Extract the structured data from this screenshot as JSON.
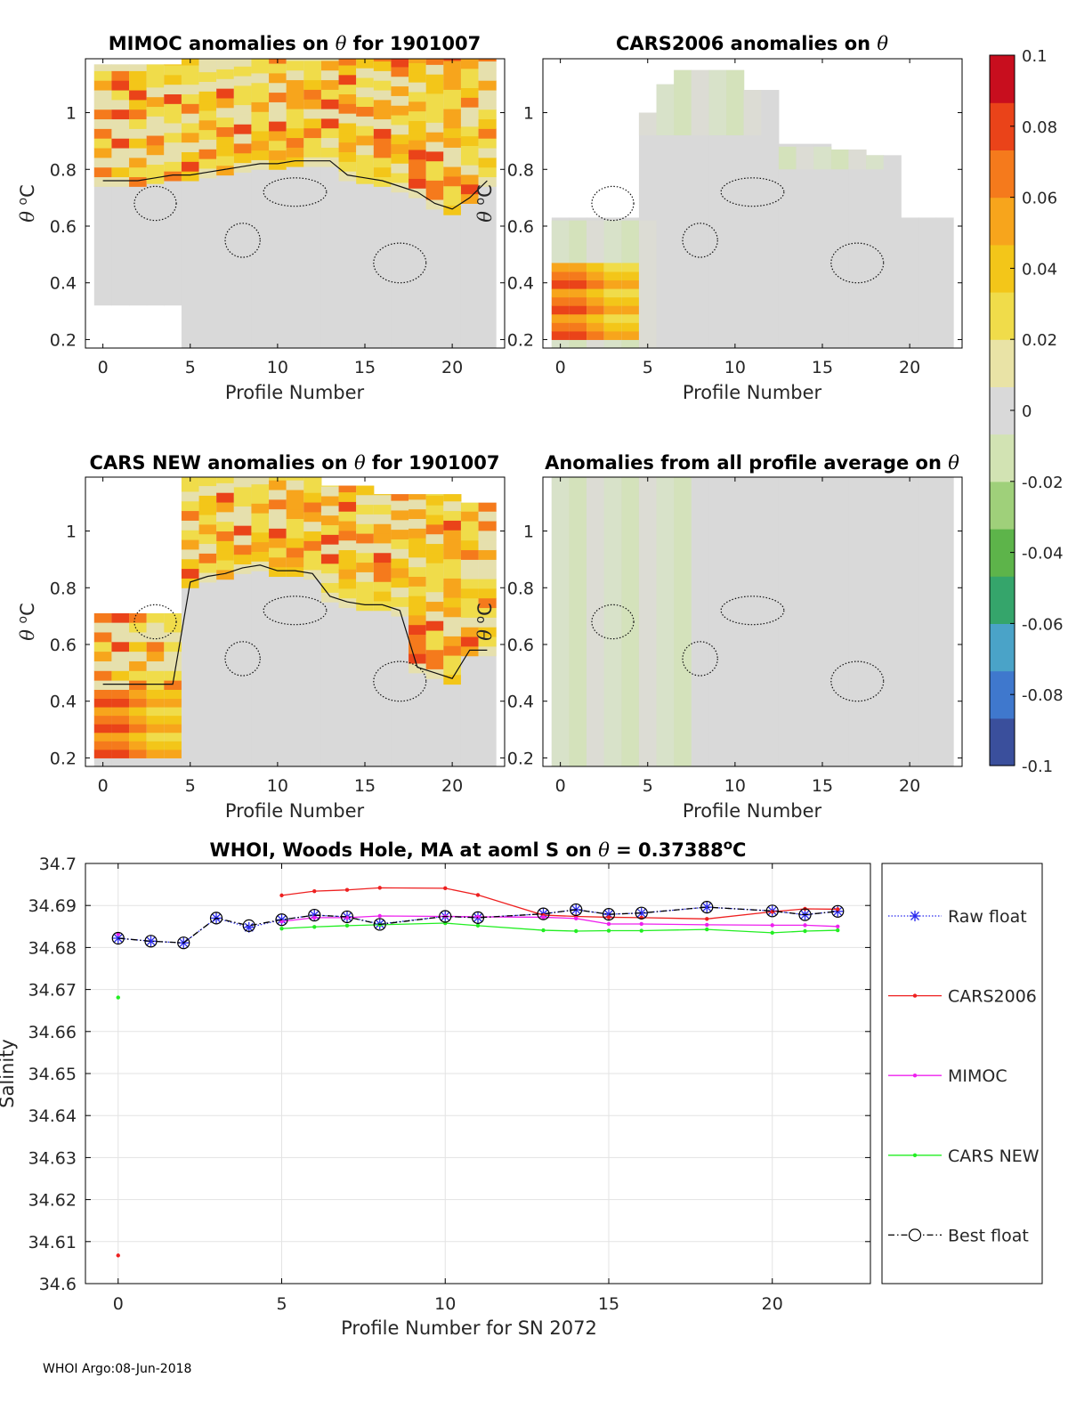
{
  "figure": {
    "footer": "WHOI Argo:08-Jun-2018"
  },
  "colorbar": {
    "min": -0.1,
    "max": 0.1,
    "tick_labels": [
      "0.1",
      "0.08",
      "0.06",
      "0.04",
      "0.02",
      "0",
      "-0.02",
      "-0.04",
      "-0.06",
      "-0.08",
      "-0.1"
    ],
    "colors": [
      "#3a4f9c",
      "#3f78cd",
      "#4aa3c8",
      "#35a56b",
      "#5db44a",
      "#9fd07a",
      "#d2e3b3",
      "#d9d9d9",
      "#e9e3a6",
      "#f0dc4a",
      "#f3c619",
      "#f7a51c",
      "#f57a1c",
      "#ea4319",
      "#c80e1e"
    ]
  },
  "heatmaps": [
    {
      "id": "mimoc",
      "title_prefix": "MIMOC anomalies on ",
      "theta": "θ",
      "title_suffix": "  for 1901007",
      "xlabel": "Profile Number",
      "ylabel_theta": "θ",
      "ylabel_unit": "C",
      "ylabel_sup": "o",
      "x_ticks": [
        "0",
        "5",
        "10",
        "15",
        "20"
      ],
      "y_ticks": [
        "0.2",
        "0.4",
        "0.6",
        "0.8",
        "1"
      ],
      "xlim": [
        -1,
        23
      ],
      "ylim": [
        0.17,
        1.19
      ],
      "grid_x": [
        0,
        1,
        2,
        3,
        4,
        5,
        6,
        7,
        8,
        9,
        10,
        11,
        12,
        13,
        14,
        15,
        16,
        17,
        18,
        19,
        20,
        21,
        22
      ],
      "theta_min": [
        0.32,
        0.32,
        0.32,
        0.32,
        0.32,
        0.17,
        0.17,
        0.17,
        0.17,
        0.17,
        0.17,
        0.17,
        0.17,
        0.17,
        0.17,
        0.17,
        0.17,
        0.17,
        0.17,
        0.17,
        0.17,
        0.17,
        0.17
      ],
      "theta_max": [
        1.17,
        1.17,
        1.17,
        1.17,
        1.17,
        1.19,
        1.19,
        1.19,
        1.19,
        1.19,
        1.19,
        1.19,
        1.19,
        1.19,
        1.19,
        1.19,
        1.19,
        1.19,
        1.19,
        1.19,
        1.19,
        1.19,
        1.19
      ],
      "warm_band": [
        0.74,
        0.74,
        0.74,
        0.75,
        0.76,
        0.76,
        0.77,
        0.78,
        0.79,
        0.8,
        0.8,
        0.81,
        0.81,
        0.81,
        0.76,
        0.75,
        0.74,
        0.72,
        0.7,
        0.66,
        0.64,
        0.68,
        0.74
      ],
      "cool_patches": []
    },
    {
      "id": "cars2006",
      "title_prefix": "CARS2006 anomalies on ",
      "theta": "θ",
      "title_suffix": "",
      "xlabel": "Profile Number",
      "ylabel_theta": "θ",
      "ylabel_unit": "C",
      "ylabel_sup": "o",
      "x_ticks": [
        "0",
        "5",
        "10",
        "15",
        "20"
      ],
      "y_ticks": [
        "0.2",
        "0.4",
        "0.6",
        "0.8",
        "1"
      ],
      "xlim": [
        -1,
        23
      ],
      "ylim": [
        0.17,
        1.19
      ],
      "grid_x": [
        0,
        1,
        2,
        3,
        4,
        5,
        6,
        7,
        8,
        9,
        10,
        11,
        12,
        13,
        14,
        15,
        16,
        17,
        18,
        19,
        20,
        21,
        22
      ],
      "theta_min": [
        0.17,
        0.17,
        0.17,
        0.17,
        0.17,
        0.17,
        0.17,
        0.17,
        0.17,
        0.17,
        0.17,
        0.17,
        0.17,
        0.17,
        0.17,
        0.17,
        0.17,
        0.17,
        0.17,
        0.17,
        0.17,
        0.17,
        0.17
      ],
      "theta_max": [
        0.63,
        0.63,
        0.63,
        0.63,
        0.63,
        1.0,
        1.1,
        1.15,
        1.15,
        1.15,
        1.15,
        1.08,
        1.08,
        0.89,
        0.89,
        0.89,
        0.87,
        0.87,
        0.85,
        0.85,
        0.63,
        0.63,
        0.63
      ],
      "warm_band": [],
      "cool_patches": [
        [
          5,
          11,
          0.92,
          1.15
        ],
        [
          13,
          18,
          0.8,
          0.88
        ],
        [
          0,
          5,
          0.17,
          0.62
        ]
      ],
      "warm_pocket": [
        0,
        4,
        0.2,
        0.47
      ]
    },
    {
      "id": "cars_new",
      "title_prefix": "CARS NEW anomalies on ",
      "theta": "θ",
      "title_suffix": " for 1901007",
      "xlabel": "Profile Number",
      "ylabel_theta": "θ",
      "ylabel_unit": "C",
      "ylabel_sup": "o",
      "x_ticks": [
        "0",
        "5",
        "10",
        "15",
        "20"
      ],
      "y_ticks": [
        "0.2",
        "0.4",
        "0.6",
        "0.8",
        "1"
      ],
      "xlim": [
        -1,
        23
      ],
      "ylim": [
        0.17,
        1.19
      ],
      "grid_x": [
        0,
        1,
        2,
        3,
        4,
        5,
        6,
        7,
        8,
        9,
        10,
        11,
        12,
        13,
        14,
        15,
        16,
        17,
        18,
        19,
        20,
        21,
        22
      ],
      "theta_min": [
        0.17,
        0.17,
        0.17,
        0.17,
        0.17,
        0.17,
        0.17,
        0.17,
        0.17,
        0.17,
        0.17,
        0.17,
        0.17,
        0.17,
        0.17,
        0.17,
        0.17,
        0.17,
        0.17,
        0.17,
        0.17,
        0.17,
        0.17
      ],
      "theta_max": [
        0.71,
        0.71,
        0.71,
        0.71,
        0.71,
        1.19,
        1.19,
        1.19,
        1.19,
        1.19,
        1.19,
        1.19,
        1.19,
        1.16,
        1.16,
        1.16,
        1.13,
        1.13,
        1.13,
        1.13,
        1.13,
        1.1,
        1.1
      ],
      "warm_band": [
        0.44,
        0.44,
        0.44,
        0.44,
        0.44,
        0.8,
        0.82,
        0.83,
        0.85,
        0.86,
        0.84,
        0.84,
        0.83,
        0.75,
        0.73,
        0.72,
        0.72,
        0.7,
        0.5,
        0.48,
        0.46,
        0.56,
        0.56
      ],
      "cool_patches": [],
      "warm_pocket": [
        0,
        4,
        0.2,
        0.43
      ]
    },
    {
      "id": "all_avg",
      "title_prefix": "Anomalies from all profile average on ",
      "theta": "θ",
      "title_suffix": "",
      "xlabel": "Profile Number",
      "ylabel_theta": "θ",
      "ylabel_unit": "C",
      "ylabel_sup": "o",
      "x_ticks": [
        "0",
        "5",
        "10",
        "15",
        "20"
      ],
      "y_ticks": [
        "0.2",
        "0.4",
        "0.6",
        "0.8",
        "1"
      ],
      "xlim": [
        -1,
        23
      ],
      "ylim": [
        0.17,
        1.19
      ],
      "grid_x": [
        0,
        1,
        2,
        3,
        4,
        5,
        6,
        7,
        8,
        9,
        10,
        11,
        12,
        13,
        14,
        15,
        16,
        17,
        18,
        19,
        20,
        21,
        22
      ],
      "theta_min": [
        0.17,
        0.17,
        0.17,
        0.17,
        0.17,
        0.17,
        0.17,
        0.17,
        0.17,
        0.17,
        0.17,
        0.17,
        0.17,
        0.17,
        0.17,
        0.17,
        0.17,
        0.17,
        0.17,
        0.17,
        0.17,
        0.17,
        0.17
      ],
      "theta_max": [
        1.19,
        1.19,
        1.19,
        1.19,
        1.19,
        1.19,
        1.19,
        1.19,
        1.19,
        1.19,
        1.19,
        1.19,
        1.19,
        1.19,
        1.19,
        1.19,
        1.19,
        1.19,
        1.19,
        1.19,
        1.19,
        1.19,
        1.19
      ],
      "warm_band": [],
      "cool_patches": [
        [
          0,
          7,
          0.17,
          1.19
        ]
      ]
    }
  ],
  "chart_data": {
    "type": "line",
    "title_prefix": "WHOI, Woods Hole, MA at aoml S on ",
    "title_theta": "θ",
    "title_value": " = 0.37388",
    "title_sup": "o",
    "title_unit": "C",
    "xlabel": "Profile Number for SN 2072",
    "ylabel": "Salinity",
    "xlim": [
      -1,
      23
    ],
    "ylim": [
      34.6,
      34.7
    ],
    "x_ticks": [
      0,
      5,
      10,
      15,
      20
    ],
    "x_tick_labels": [
      "0",
      "5",
      "10",
      "15",
      "20"
    ],
    "y_ticks": [
      34.6,
      34.61,
      34.62,
      34.63,
      34.64,
      34.65,
      34.66,
      34.67,
      34.68,
      34.69,
      34.7
    ],
    "y_tick_labels": [
      "34.6",
      "34.61",
      "34.62",
      "34.63",
      "34.64",
      "34.65",
      "34.66",
      "34.67",
      "34.68",
      "34.69",
      "34.7"
    ],
    "grid": true,
    "legend_position": "right",
    "series": [
      {
        "name": "Raw float",
        "color": "#2a2aee",
        "style": "dotted",
        "marker": "star",
        "x": [
          0,
          1,
          2,
          3,
          4,
          5,
          6,
          7,
          8,
          10,
          11,
          13,
          14,
          15,
          16,
          18,
          20,
          21,
          22
        ],
        "y": [
          34.6822,
          34.6815,
          34.6811,
          34.687,
          34.6848,
          34.6866,
          34.6877,
          34.6873,
          34.6856,
          34.6874,
          34.6871,
          34.688,
          34.689,
          34.6879,
          34.6882,
          34.6896,
          34.6887,
          34.6878,
          34.6886
        ]
      },
      {
        "name": "CARS2006",
        "color": "#ee2020",
        "style": "solid",
        "marker": "dot",
        "x": [
          0,
          5,
          6,
          7,
          8,
          10,
          11,
          13,
          14,
          15,
          16,
          18,
          20,
          21,
          22
        ],
        "y": [
          34.6067,
          34.6924,
          34.6934,
          34.6937,
          34.6942,
          34.6941,
          34.6925,
          34.6877,
          34.6874,
          34.6872,
          34.6871,
          34.6868,
          34.6885,
          34.6892,
          34.6891
        ]
      },
      {
        "name": "MIMOC",
        "color": "#ee20ee",
        "style": "solid",
        "marker": "dot",
        "x": [
          0,
          5,
          6,
          7,
          8,
          10,
          11,
          13,
          14,
          15,
          16,
          18,
          20,
          21,
          22
        ],
        "y": [
          34.6832,
          34.6862,
          34.6871,
          34.6871,
          34.6875,
          34.6874,
          34.6873,
          34.6872,
          34.6869,
          34.6856,
          34.6856,
          34.6854,
          34.6853,
          34.6853,
          34.685
        ]
      },
      {
        "name": "CARS NEW",
        "color": "#22ee22",
        "style": "solid",
        "marker": "dot",
        "x": [
          0,
          5,
          6,
          7,
          8,
          10,
          11,
          13,
          14,
          15,
          16,
          18,
          20,
          21,
          22
        ],
        "y": [
          34.6681,
          34.6845,
          34.6849,
          34.6852,
          34.6854,
          34.6858,
          34.6852,
          34.6841,
          34.6839,
          34.684,
          34.684,
          34.6843,
          34.6835,
          34.6839,
          34.6841
        ]
      },
      {
        "name": "Best float",
        "color": "#000000",
        "style": "dashdot",
        "marker": "circle",
        "x": [
          0,
          1,
          2,
          3,
          4,
          5,
          6,
          7,
          8,
          10,
          11,
          13,
          14,
          15,
          16,
          18,
          20,
          21,
          22
        ],
        "y": [
          34.6822,
          34.6815,
          34.6811,
          34.687,
          34.6852,
          34.6866,
          34.6877,
          34.6873,
          34.6855,
          34.6874,
          34.6871,
          34.688,
          34.689,
          34.6879,
          34.6882,
          34.6896,
          34.6887,
          34.6878,
          34.6886
        ]
      }
    ]
  }
}
